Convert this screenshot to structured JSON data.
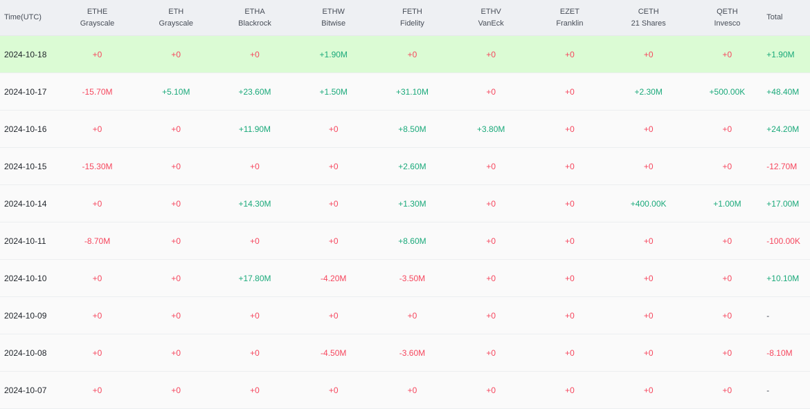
{
  "table": {
    "time_header": "Time(UTC)",
    "total_header": "Total",
    "columns": [
      {
        "ticker": "ETHE",
        "issuer": "Grayscale"
      },
      {
        "ticker": "ETH",
        "issuer": "Grayscale"
      },
      {
        "ticker": "ETHA",
        "issuer": "Blackrock"
      },
      {
        "ticker": "ETHW",
        "issuer": "Bitwise"
      },
      {
        "ticker": "FETH",
        "issuer": "Fidelity"
      },
      {
        "ticker": "ETHV",
        "issuer": "VanEck"
      },
      {
        "ticker": "EZET",
        "issuer": "Franklin"
      },
      {
        "ticker": "CETH",
        "issuer": "21 Shares"
      },
      {
        "ticker": "QETH",
        "issuer": "Invesco"
      }
    ],
    "rows": [
      {
        "date": "2024-10-18",
        "highlight": true,
        "values": [
          "+0",
          "+0",
          "+0",
          "+1.90M",
          "+0",
          "+0",
          "+0",
          "+0",
          "+0"
        ],
        "total": "+1.90M"
      },
      {
        "date": "2024-10-17",
        "highlight": false,
        "values": [
          "-15.70M",
          "+5.10M",
          "+23.60M",
          "+1.50M",
          "+31.10M",
          "+0",
          "+0",
          "+2.30M",
          "+500.00K"
        ],
        "total": "+48.40M"
      },
      {
        "date": "2024-10-16",
        "highlight": false,
        "values": [
          "+0",
          "+0",
          "+11.90M",
          "+0",
          "+8.50M",
          "+3.80M",
          "+0",
          "+0",
          "+0"
        ],
        "total": "+24.20M"
      },
      {
        "date": "2024-10-15",
        "highlight": false,
        "values": [
          "-15.30M",
          "+0",
          "+0",
          "+0",
          "+2.60M",
          "+0",
          "+0",
          "+0",
          "+0"
        ],
        "total": "-12.70M"
      },
      {
        "date": "2024-10-14",
        "highlight": false,
        "values": [
          "+0",
          "+0",
          "+14.30M",
          "+0",
          "+1.30M",
          "+0",
          "+0",
          "+400.00K",
          "+1.00M"
        ],
        "total": "+17.00M"
      },
      {
        "date": "2024-10-11",
        "highlight": false,
        "values": [
          "-8.70M",
          "+0",
          "+0",
          "+0",
          "+8.60M",
          "+0",
          "+0",
          "+0",
          "+0"
        ],
        "total": "-100.00K"
      },
      {
        "date": "2024-10-10",
        "highlight": false,
        "values": [
          "+0",
          "+0",
          "+17.80M",
          "-4.20M",
          "-3.50M",
          "+0",
          "+0",
          "+0",
          "+0"
        ],
        "total": "+10.10M"
      },
      {
        "date": "2024-10-09",
        "highlight": false,
        "values": [
          "+0",
          "+0",
          "+0",
          "+0",
          "+0",
          "+0",
          "+0",
          "+0",
          "+0"
        ],
        "total": "-"
      },
      {
        "date": "2024-10-08",
        "highlight": false,
        "values": [
          "+0",
          "+0",
          "+0",
          "-4.50M",
          "-3.60M",
          "+0",
          "+0",
          "+0",
          "+0"
        ],
        "total": "-8.10M"
      },
      {
        "date": "2024-10-07",
        "highlight": false,
        "values": [
          "+0",
          "+0",
          "+0",
          "+0",
          "+0",
          "+0",
          "+0",
          "+0",
          "+0"
        ],
        "total": "-"
      }
    ]
  },
  "colors": {
    "positive": "#1aa97a",
    "negative": "#f6465d",
    "zero": "#f6465d",
    "highlight_row": "#dbfbd4",
    "header_bg": "#eef0f3"
  }
}
